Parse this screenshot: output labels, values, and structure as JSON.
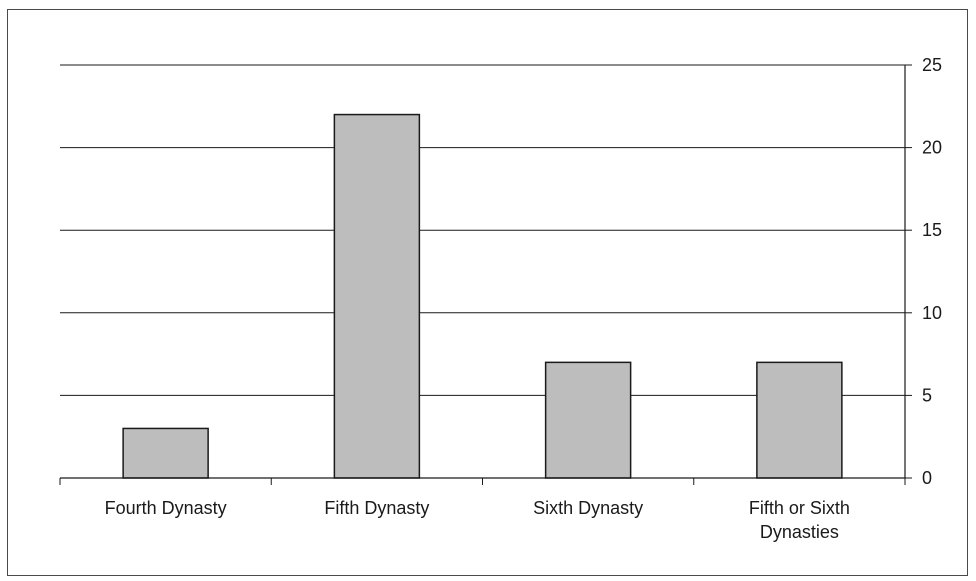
{
  "chart_data": {
    "type": "bar",
    "categories": [
      "Fourth Dynasty",
      "Fifth Dynasty",
      "Sixth Dynasty",
      "Fifth or Sixth Dynasties"
    ],
    "category_lines": [
      [
        "Fourth Dynasty"
      ],
      [
        "Fifth Dynasty"
      ],
      [
        "Sixth Dynasty"
      ],
      [
        "Fifth or Sixth",
        "Dynasties"
      ]
    ],
    "values": [
      3,
      22,
      7,
      7
    ],
    "title": "",
    "xlabel": "",
    "ylabel": "",
    "ylim": [
      0,
      25
    ],
    "yticks": [
      0,
      5,
      10,
      15,
      20,
      25
    ],
    "y_axis_side": "right",
    "grid": true,
    "legend": "none",
    "colors": {
      "bar_fill": "#bdbdbd",
      "bar_stroke": "#1a1a1a",
      "gridline": "#1a1a1a",
      "axis": "#1a1a1a"
    }
  }
}
